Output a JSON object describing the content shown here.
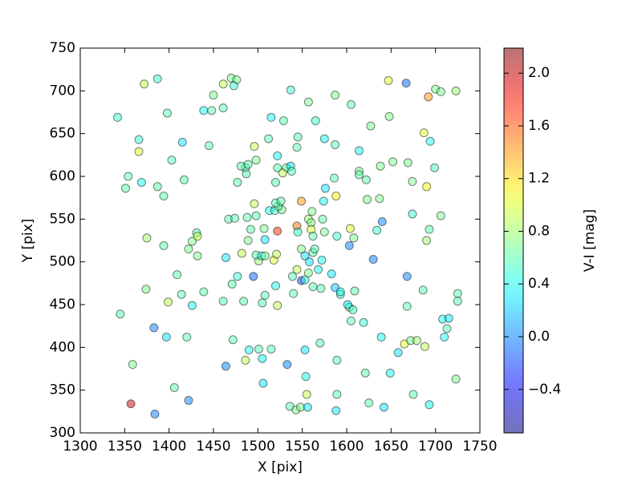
{
  "chart_data": {
    "type": "scatter",
    "xlabel": "X [pix]",
    "ylabel": "Y [pix]",
    "colorbar_label": "V-I [mag]",
    "colormap": "jet",
    "alpha": 0.5,
    "xlim": [
      1300,
      1750
    ],
    "xticks": [
      1300,
      1350,
      1400,
      1450,
      1500,
      1550,
      1600,
      1650,
      1700,
      1750
    ],
    "ylim": [
      300,
      750
    ],
    "yticks": [
      300,
      350,
      400,
      450,
      500,
      550,
      600,
      650,
      700,
      750
    ],
    "clim": [
      -0.73,
      2.19
    ],
    "cticks": [
      {
        "value": -0.4,
        "label": "−0.4"
      },
      {
        "value": 0,
        "label": "0.0"
      },
      0.4,
      0.8,
      1.2,
      1.6,
      {
        "value": 2,
        "label": "2.0"
      }
    ],
    "x": [
      1342,
      1372,
      1387,
      1398,
      1366,
      1366,
      1415,
      1403,
      1354,
      1351,
      1369,
      1387,
      1394,
      1417,
      1445,
      1439,
      1448,
      1461,
      1450,
      1461,
      1470,
      1476,
      1473,
      1375,
      1394,
      1422,
      1426,
      1431,
      1432,
      1432,
      1409,
      1374,
      1399,
      1414,
      1439,
      1426,
      1345,
      1383,
      1397,
      1420,
      1359,
      1406,
      1422,
      1357,
      1384,
      1464,
      1472,
      1490,
      1486,
      1501,
      1505,
      1515,
      1506,
      1533,
      1536,
      1543,
      1548,
      1556,
      1555,
      1554,
      1553,
      1570,
      1589,
      1589,
      1588,
      1625,
      1642,
      1621,
      1649,
      1658,
      1665,
      1672,
      1679,
      1688,
      1675,
      1693,
      1723,
      1710,
      1713,
      1708,
      1715,
      1725,
      1725,
      1686,
      1668,
      1668,
      1639,
      1619,
      1605,
      1603,
      1607,
      1601,
      1609,
      1593,
      1587,
      1593,
      1583,
      1571,
      1562,
      1549,
      1540,
      1553,
      1557,
      1568,
      1544,
      1539,
      1522,
      1520,
      1508,
      1495,
      1477,
      1471,
      1461,
      1484,
      1505,
      1501,
      1498,
      1504,
      1508,
      1518,
      1521,
      1508,
      1507,
      1489,
      1492,
      1482,
      1464,
      1467,
      1474,
      1488,
      1496,
      1498,
      1513,
      1519,
      1527,
      1523,
      1520,
      1526,
      1520,
      1549,
      1544,
      1522,
      1545,
      1557,
      1560,
      1561,
      1560,
      1562,
      1575,
      1573,
      1574,
      1549,
      1553,
      1558,
      1562,
      1564,
      1572,
      1589,
      1604,
      1608,
      1603,
      1630,
      1634,
      1640,
      1637,
      1674,
      1693,
      1690,
      1706,
      1690,
      1674,
      1669,
      1652,
      1638,
      1614,
      1614,
      1622,
      1623,
      1586,
      1576,
      1588,
      1614,
      1587,
      1605,
      1587,
      1575,
      1565,
      1557,
      1537,
      1529,
      1515,
      1512,
      1545,
      1544,
      1522,
      1522,
      1532,
      1537,
      1538,
      1528,
      1496,
      1486,
      1481,
      1489,
      1498,
      1487,
      1477,
      1627,
      1647,
      1648,
      1667,
      1692,
      1700,
      1706,
      1723,
      1694,
      1687,
      1699
    ],
    "y": [
      669,
      708,
      714,
      674,
      643,
      629,
      640,
      619,
      600,
      586,
      593,
      588,
      577,
      596,
      636,
      677,
      677,
      680,
      695,
      708,
      715,
      713,
      706,
      528,
      519,
      515,
      524,
      534,
      530,
      507,
      485,
      468,
      453,
      462,
      465,
      449,
      439,
      423,
      412,
      412,
      380,
      353,
      338,
      334,
      322,
      378,
      409,
      397,
      385,
      398,
      387,
      398,
      358,
      380,
      331,
      327,
      330,
      330,
      345,
      366,
      397,
      405,
      385,
      345,
      326,
      335,
      330,
      370,
      370,
      394,
      404,
      408,
      408,
      401,
      345,
      333,
      363,
      412,
      422,
      433,
      434,
      463,
      454,
      467,
      448,
      483,
      412,
      429,
      431,
      447,
      444,
      450,
      466,
      462,
      470,
      465,
      486,
      469,
      471,
      478,
      463,
      479,
      487,
      491,
      491,
      483,
      449,
      472,
      461,
      483,
      483,
      474,
      454,
      454,
      452,
      501,
      508,
      507,
      507,
      502,
      509,
      526,
      539,
      525,
      538,
      510,
      505,
      550,
      551,
      552,
      568,
      554,
      560,
      560,
      561,
      565,
      569,
      571,
      593,
      571,
      542,
      536,
      535,
      550,
      546,
      559,
      538,
      530,
      535,
      550,
      571,
      515,
      507,
      500,
      511,
      515,
      502,
      530,
      539,
      528,
      519,
      503,
      537,
      547,
      574,
      556,
      538,
      525,
      554,
      588,
      594,
      616,
      617,
      612,
      606,
      602,
      596,
      573,
      598,
      586,
      577,
      630,
      637,
      684,
      695,
      644,
      665,
      687,
      701,
      665,
      669,
      644,
      646,
      634,
      624,
      610,
      610,
      612,
      606,
      604,
      635,
      610,
      612,
      614,
      619,
      603,
      593,
      659,
      712,
      670,
      709,
      693,
      702,
      699,
      700,
      641,
      651,
      610
    ],
    "c": [
      0.5,
      0.9,
      0.5,
      0.6,
      0.5,
      1.0,
      0.3,
      0.6,
      0.6,
      0.6,
      0.4,
      0.6,
      0.6,
      0.6,
      0.6,
      0.4,
      0.6,
      0.6,
      0.7,
      0.9,
      0.7,
      0.7,
      0.5,
      0.8,
      0.6,
      0.7,
      0.7,
      0.6,
      0.9,
      0.7,
      0.6,
      0.7,
      0.9,
      0.6,
      0.6,
      0.4,
      0.6,
      0.0,
      0.3,
      0.6,
      0.7,
      0.6,
      0.0,
      2.0,
      0.0,
      0.0,
      0.6,
      0.4,
      0.9,
      0.6,
      0.4,
      0.6,
      0.3,
      0.0,
      0.6,
      0.7,
      0.7,
      0.3,
      0.9,
      0.4,
      0.3,
      0.6,
      0.6,
      0.6,
      0.3,
      0.6,
      0.3,
      0.6,
      0.4,
      0.3,
      1.0,
      0.7,
      0.8,
      0.9,
      0.6,
      0.4,
      0.7,
      0.4,
      0.6,
      0.4,
      0.3,
      0.6,
      0.6,
      0.6,
      0.6,
      0.0,
      0.4,
      0.5,
      0.6,
      0.7,
      0.5,
      0.3,
      0.6,
      0.5,
      0.2,
      0.4,
      0.3,
      0.6,
      0.6,
      -0.2,
      0.6,
      0.5,
      0.7,
      0.4,
      0.9,
      0.6,
      0.9,
      0.4,
      0.6,
      -0.1,
      0.5,
      0.6,
      0.6,
      0.6,
      0.6,
      0.8,
      0.6,
      0.4,
      0.7,
      1.0,
      0.9,
      0.3,
      0.7,
      0.7,
      0.6,
      0.9,
      0.3,
      0.6,
      0.6,
      0.6,
      0.9,
      0.6,
      0.4,
      0.5,
      0.7,
      0.6,
      0.6,
      0.6,
      0.6,
      1.4,
      1.5,
      1.7,
      0.5,
      0.8,
      0.7,
      0.7,
      1.0,
      0.6,
      0.7,
      0.6,
      0.4,
      0.7,
      0.3,
      0.3,
      0.6,
      0.6,
      0.4,
      0.5,
      1.0,
      0.7,
      0.0,
      0.0,
      0.5,
      0.0,
      0.7,
      0.5,
      0.6,
      0.8,
      0.7,
      1.1,
      0.7,
      0.7,
      0.7,
      0.7,
      0.7,
      0.6,
      0.6,
      0.7,
      0.6,
      0.3,
      1.1,
      0.4,
      0.6,
      0.6,
      0.7,
      0.4,
      0.5,
      0.7,
      0.5,
      0.6,
      0.4,
      0.6,
      0.6,
      0.6,
      0.4,
      0.6,
      0.6,
      0.3,
      0.6,
      0.9,
      0.9,
      0.6,
      0.6,
      0.6,
      0.7,
      0.6,
      0.6,
      0.7,
      1.0,
      0.7,
      -0.1,
      1.4,
      0.7,
      0.7,
      0.8,
      0.4,
      1.0,
      0.6
    ]
  }
}
